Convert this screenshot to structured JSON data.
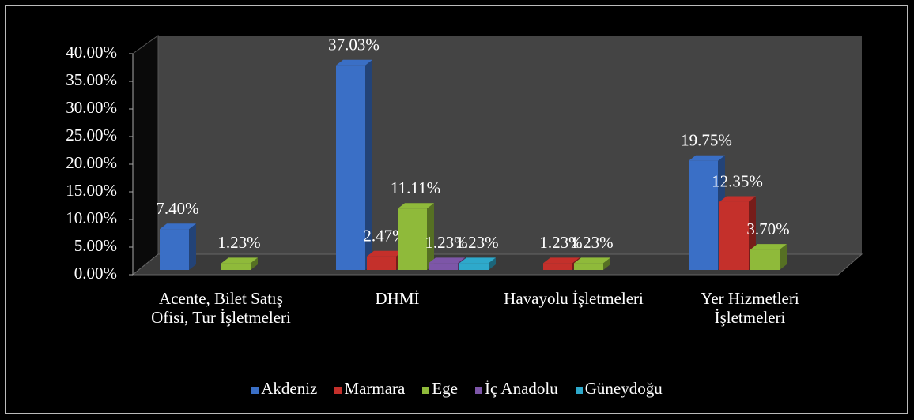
{
  "chart_data": {
    "type": "bar3d",
    "categories": [
      "Acente, Bilet Satış Ofisi, Tur İşletmeleri",
      "DHMİ",
      "Havayolu İşletmeleri",
      "Yer Hizmetleri İşletmeleri"
    ],
    "series": [
      {
        "name": "Akdeniz",
        "color": "#3a6fc6",
        "values": [
          7.4,
          37.03,
          null,
          19.75
        ],
        "value_labels": [
          "7.40%",
          "37.03%",
          null,
          "19.75%"
        ]
      },
      {
        "name": "Marmara",
        "color": "#c4302b",
        "values": [
          null,
          2.47,
          1.23,
          12.35
        ],
        "value_labels": [
          null,
          "2.47%",
          "1.23%",
          "12.35%"
        ]
      },
      {
        "name": "Ege",
        "color": "#8fba3a",
        "values": [
          1.23,
          11.11,
          1.23,
          3.7
        ],
        "value_labels": [
          "1.23%",
          "11.11%",
          "1.23%",
          "3.70%"
        ]
      },
      {
        "name": "İç Anadolu",
        "color": "#7d56a8",
        "values": [
          null,
          1.23,
          null,
          null
        ],
        "value_labels": [
          null,
          "1.23%",
          null,
          null
        ]
      },
      {
        "name": "Güneydoğu",
        "color": "#2ea9cb",
        "values": [
          null,
          1.23,
          null,
          null
        ],
        "value_labels": [
          null,
          "1.23%",
          null,
          null
        ]
      }
    ],
    "ylim": [
      0,
      40
    ],
    "yticks": [
      {
        "value": 0,
        "label": "0.00%"
      },
      {
        "value": 5,
        "label": "5.00%"
      },
      {
        "value": 10,
        "label": "10.00%"
      },
      {
        "value": 15,
        "label": "15.00%"
      },
      {
        "value": 20,
        "label": "20.00%"
      },
      {
        "value": 25,
        "label": "25.00%"
      },
      {
        "value": 30,
        "label": "30.00%"
      },
      {
        "value": 35,
        "label": "35.00%"
      },
      {
        "value": 40,
        "label": "40.00%"
      }
    ],
    "legend": "bottom"
  }
}
